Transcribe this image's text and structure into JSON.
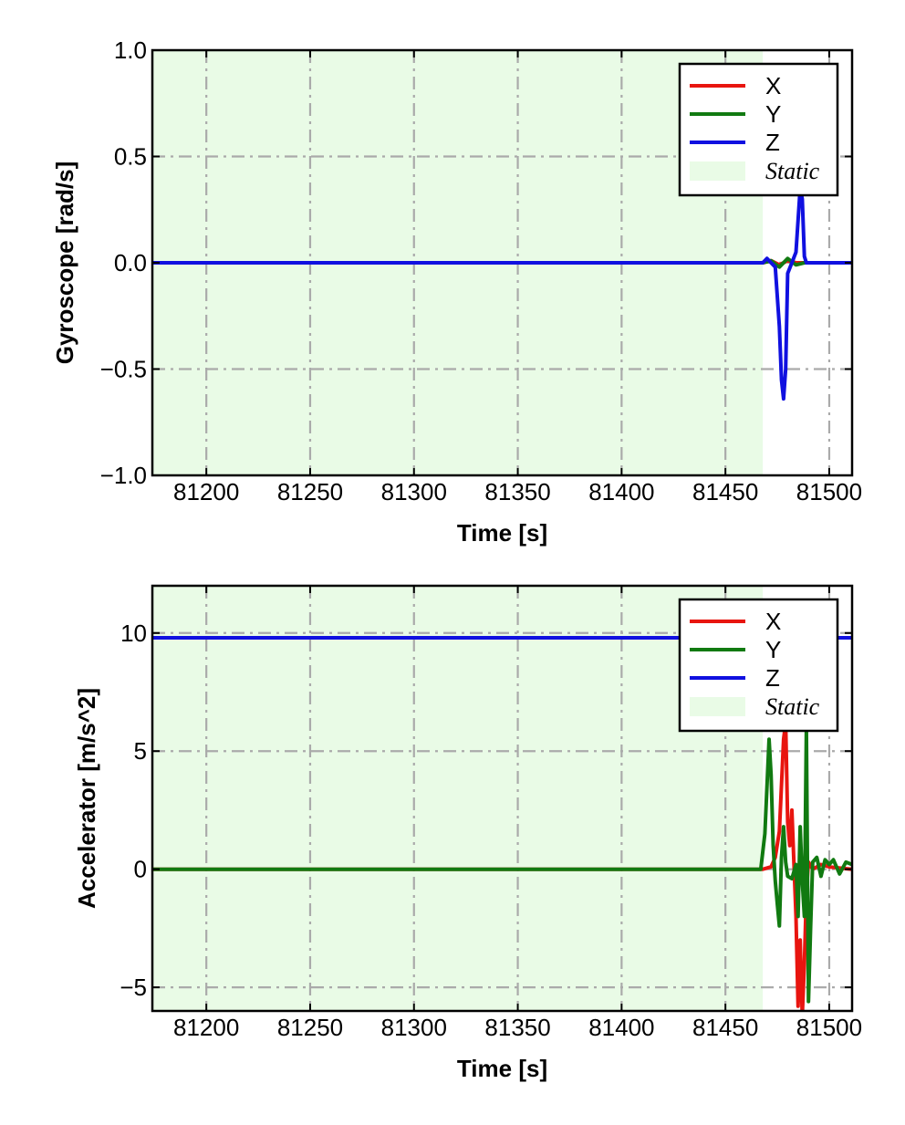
{
  "chart_data": [
    {
      "type": "line",
      "xlabel": "Time [s]",
      "ylabel": "Gyroscope [rad/s]",
      "xlim": [
        81174,
        81511
      ],
      "ylim": [
        -1.0,
        1.0
      ],
      "xticks": [
        81200,
        81250,
        81300,
        81350,
        81400,
        81450,
        81500
      ],
      "xtick_labels": [
        "81200",
        "81250",
        "81300",
        "81350",
        "81400",
        "81450",
        "81500"
      ],
      "yticks": [
        -1.0,
        -0.5,
        0.0,
        0.5,
        1.0
      ],
      "ytick_labels": [
        "−1.0",
        "−0.5",
        "0.0",
        "0.5",
        "1.0"
      ],
      "grid": true,
      "legend_position": "top-right",
      "legend": {
        "entries": [
          {
            "label": "X",
            "kind": "line",
            "color": "#e8150f"
          },
          {
            "label": "Y",
            "kind": "line",
            "color": "#117a11"
          },
          {
            "label": "Z",
            "kind": "line",
            "color": "#1010e0"
          },
          {
            "label": "Static",
            "kind": "patch",
            "color": "#e9fbe6"
          }
        ]
      },
      "static_span": [
        81174,
        81468
      ],
      "series": [
        {
          "name": "X",
          "color": "#e8150f",
          "x": [
            81174,
            81468,
            81472,
            81476,
            81480,
            81484,
            81488,
            81492,
            81511
          ],
          "y": [
            0,
            0,
            0.01,
            -0.01,
            0.01,
            0,
            0,
            0,
            0
          ]
        },
        {
          "name": "Y",
          "color": "#117a11",
          "x": [
            81174,
            81468,
            81472,
            81476,
            81480,
            81484,
            81488,
            81492,
            81511
          ],
          "y": [
            0,
            0,
            0.01,
            -0.02,
            0.02,
            -0.01,
            0,
            0,
            0
          ]
        },
        {
          "name": "Z",
          "color": "#1010e0",
          "x": [
            81174,
            81468,
            81470,
            81472,
            81474,
            81476,
            81477,
            81478,
            81479,
            81480,
            81482,
            81484,
            81485,
            81486,
            81487,
            81488,
            81489,
            81511
          ],
          "y": [
            0,
            0,
            0.02,
            0,
            -0.02,
            -0.3,
            -0.55,
            -0.64,
            -0.5,
            -0.05,
            0,
            0.05,
            0.2,
            0.35,
            0.3,
            0.03,
            0,
            0
          ]
        }
      ]
    },
    {
      "type": "line",
      "xlabel": "Time [s]",
      "ylabel": "Accelerator [m/s^2]",
      "xlim": [
        81174,
        81511
      ],
      "ylim": [
        -6,
        12
      ],
      "xticks": [
        81200,
        81250,
        81300,
        81350,
        81400,
        81450,
        81500
      ],
      "xtick_labels": [
        "81200",
        "81250",
        "81300",
        "81350",
        "81400",
        "81450",
        "81500"
      ],
      "yticks": [
        -5,
        0,
        5,
        10
      ],
      "ytick_labels": [
        "−5",
        "0",
        "5",
        "10"
      ],
      "grid": true,
      "legend_position": "top-right",
      "legend": {
        "entries": [
          {
            "label": "X",
            "kind": "line",
            "color": "#e8150f"
          },
          {
            "label": "Y",
            "kind": "line",
            "color": "#117a11"
          },
          {
            "label": "Z",
            "kind": "line",
            "color": "#1010e0"
          },
          {
            "label": "Static",
            "kind": "patch",
            "color": "#e9fbe6"
          }
        ]
      },
      "static_span": [
        81174,
        81468
      ],
      "series": [
        {
          "name": "Z",
          "color": "#1010e0",
          "x": [
            81174,
            81511
          ],
          "y": [
            9.8,
            9.8
          ]
        },
        {
          "name": "X",
          "color": "#e8150f",
          "x": [
            81174,
            81468,
            81472,
            81474,
            81476,
            81478,
            81479,
            81480,
            81481,
            81482,
            81483,
            81484,
            81485,
            81486,
            81487,
            81488,
            81489,
            81490,
            81492,
            81496,
            81500,
            81511
          ],
          "y": [
            0,
            0,
            0.1,
            0.5,
            1.6,
            5.5,
            6.2,
            2.0,
            1.0,
            2.5,
            0.2,
            -2.0,
            -5.8,
            -3.0,
            -6.2,
            -4.0,
            -1.0,
            0.3,
            0.0,
            0.2,
            0.1,
            0
          ]
        },
        {
          "name": "Y",
          "color": "#117a11",
          "x": [
            81174,
            81467,
            81469,
            81471,
            81472,
            81473,
            81474,
            81475,
            81476,
            81477,
            81478,
            81479,
            81480,
            81482,
            81484,
            81485,
            81486,
            81487,
            81488,
            81489,
            81490,
            81491,
            81492,
            81494,
            81496,
            81498,
            81500,
            81502,
            81505,
            81508,
            81511
          ],
          "y": [
            0,
            0,
            1.5,
            5.5,
            4.0,
            1.0,
            -0.5,
            -1.5,
            -2.4,
            0.5,
            1.8,
            0.3,
            -0.3,
            -0.4,
            0.2,
            -2.0,
            1.8,
            -0.5,
            -2.0,
            6.0,
            -5.6,
            -2.5,
            0.3,
            0.5,
            -0.3,
            0.4,
            0.2,
            0.4,
            -0.2,
            0.3,
            0.2
          ]
        }
      ]
    }
  ]
}
